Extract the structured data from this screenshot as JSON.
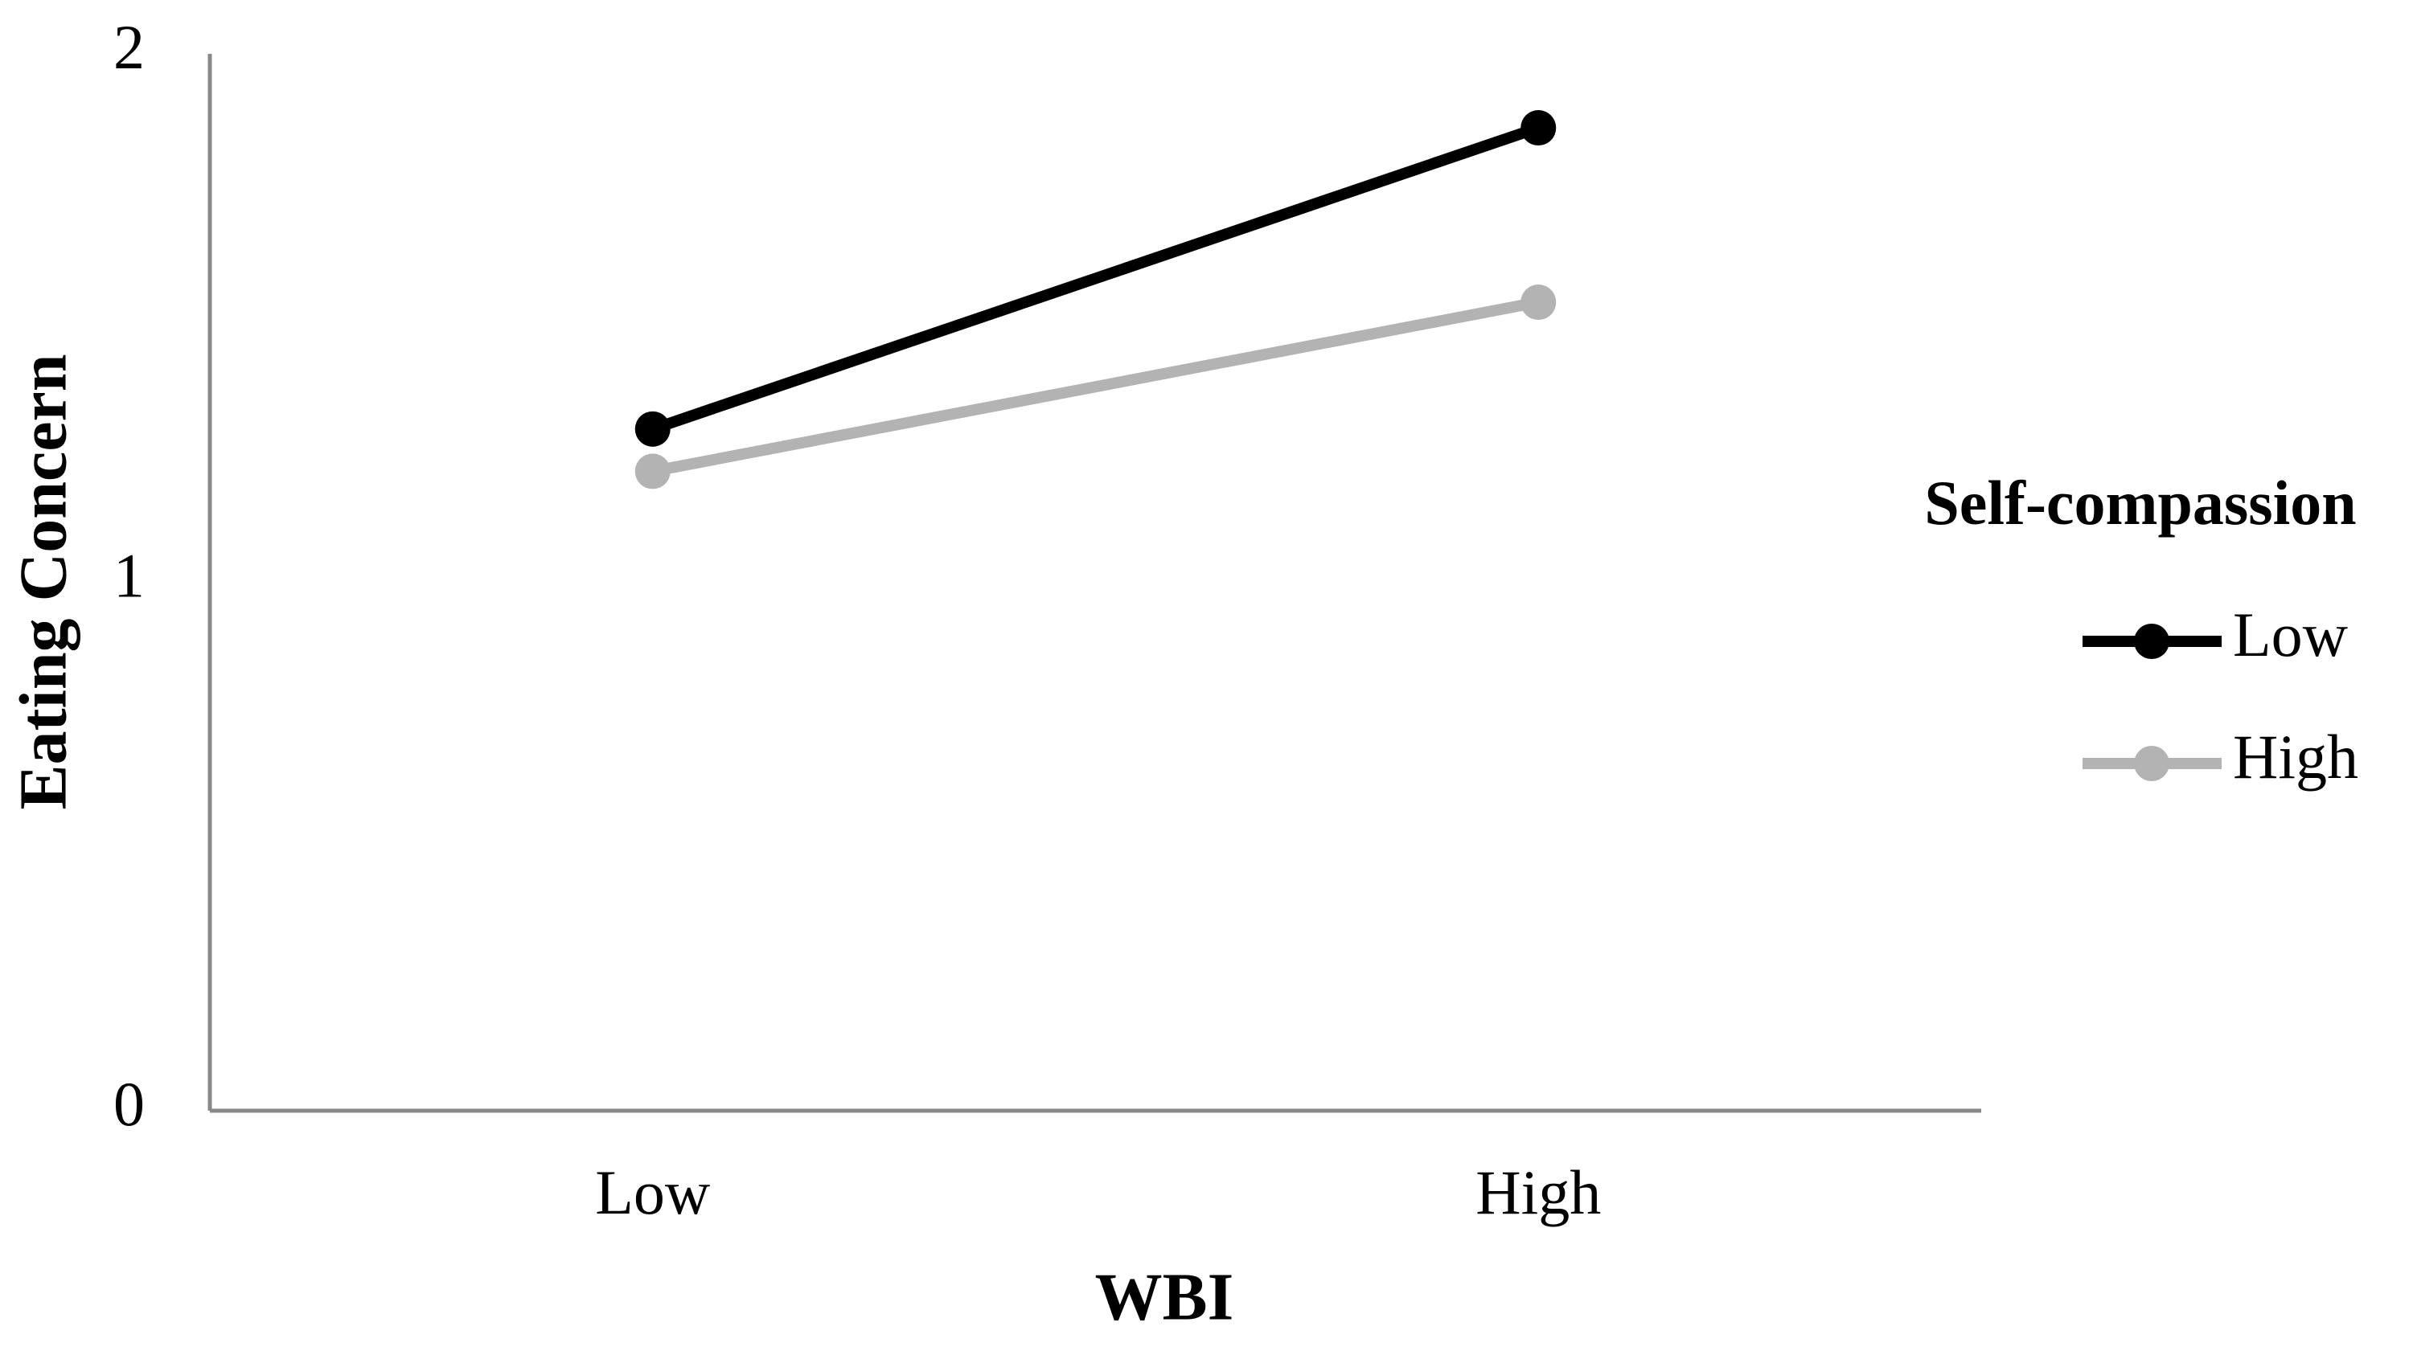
{
  "chart_data": {
    "type": "line",
    "x_label": "WBI",
    "y_label": "Eating Concern",
    "categories": [
      "Low",
      "High"
    ],
    "series": [
      {
        "name": "Low",
        "color": "#000000",
        "values": [
          1.29,
          1.86
        ]
      },
      {
        "name": "High",
        "color": "#b3b3b3",
        "values": [
          1.21,
          1.53
        ]
      }
    ],
    "ylim": [
      0,
      2
    ],
    "yticks": [
      0,
      1,
      2
    ],
    "grid": false,
    "legend_title": "Self-compassion",
    "legend_position": "right"
  }
}
